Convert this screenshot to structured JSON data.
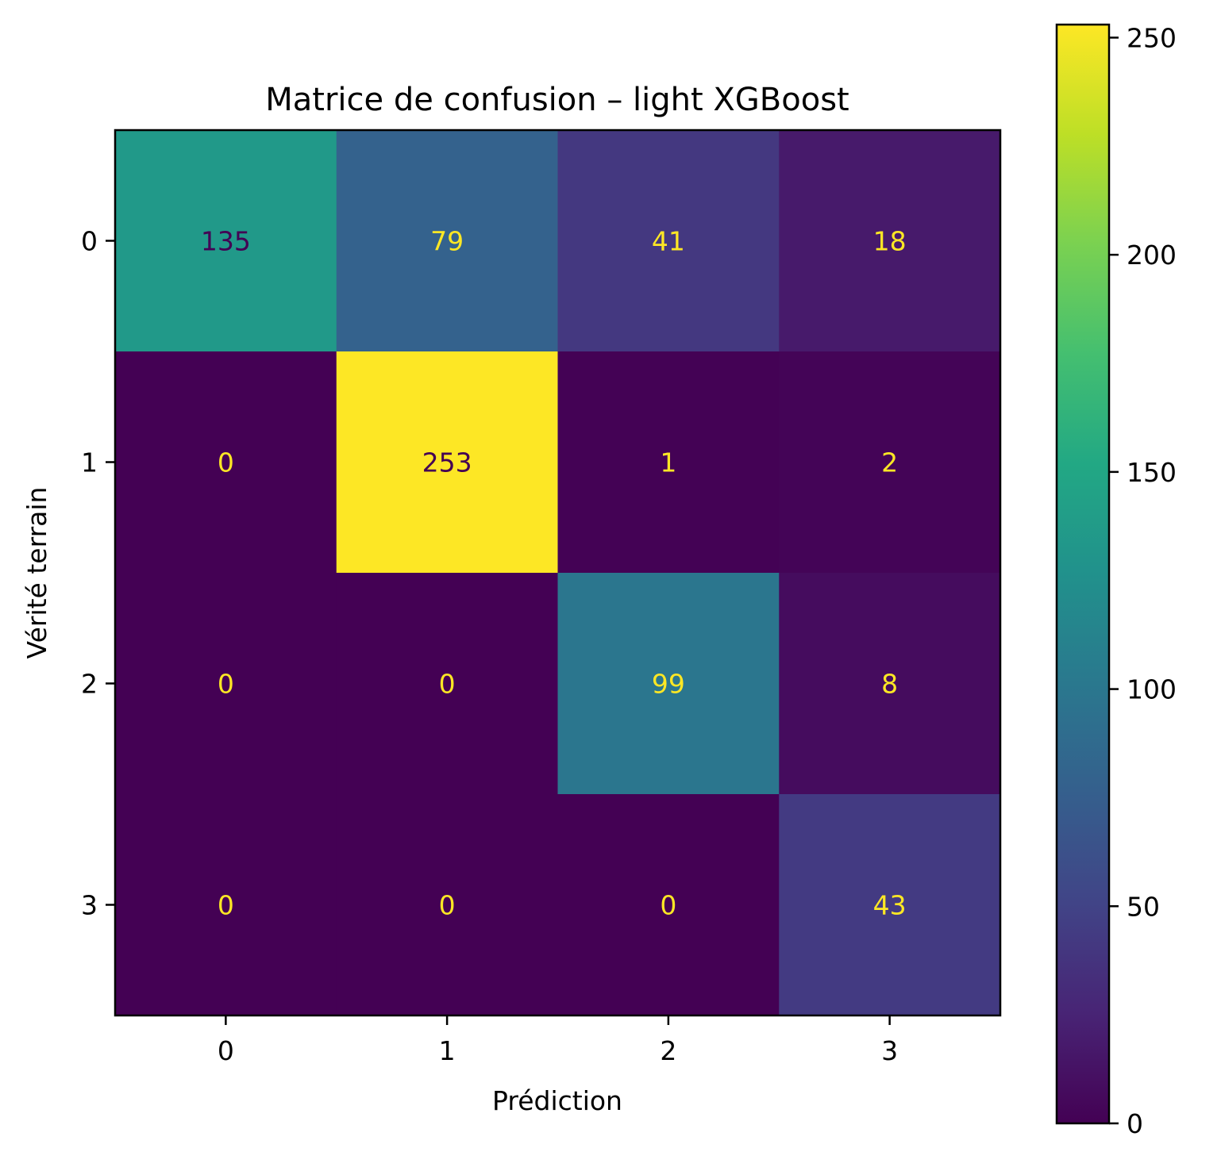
{
  "chart_data": {
    "type": "heatmap",
    "title": "Matrice de confusion – light XGBoost",
    "xlabel": "Prédiction",
    "ylabel": "Vérité terrain",
    "x_categories": [
      "0",
      "1",
      "2",
      "3"
    ],
    "y_categories": [
      "0",
      "1",
      "2",
      "3"
    ],
    "values": [
      [
        135,
        79,
        41,
        18
      ],
      [
        0,
        253,
        1,
        2
      ],
      [
        0,
        0,
        99,
        8
      ],
      [
        0,
        0,
        0,
        43
      ]
    ],
    "colormap": "viridis",
    "vmin": 0,
    "vmax": 253,
    "colorbar_ticks": [
      0,
      50,
      100,
      150,
      200,
      250
    ],
    "text_color_low": "#fde725",
    "text_color_high": "#440154",
    "grid": false
  }
}
